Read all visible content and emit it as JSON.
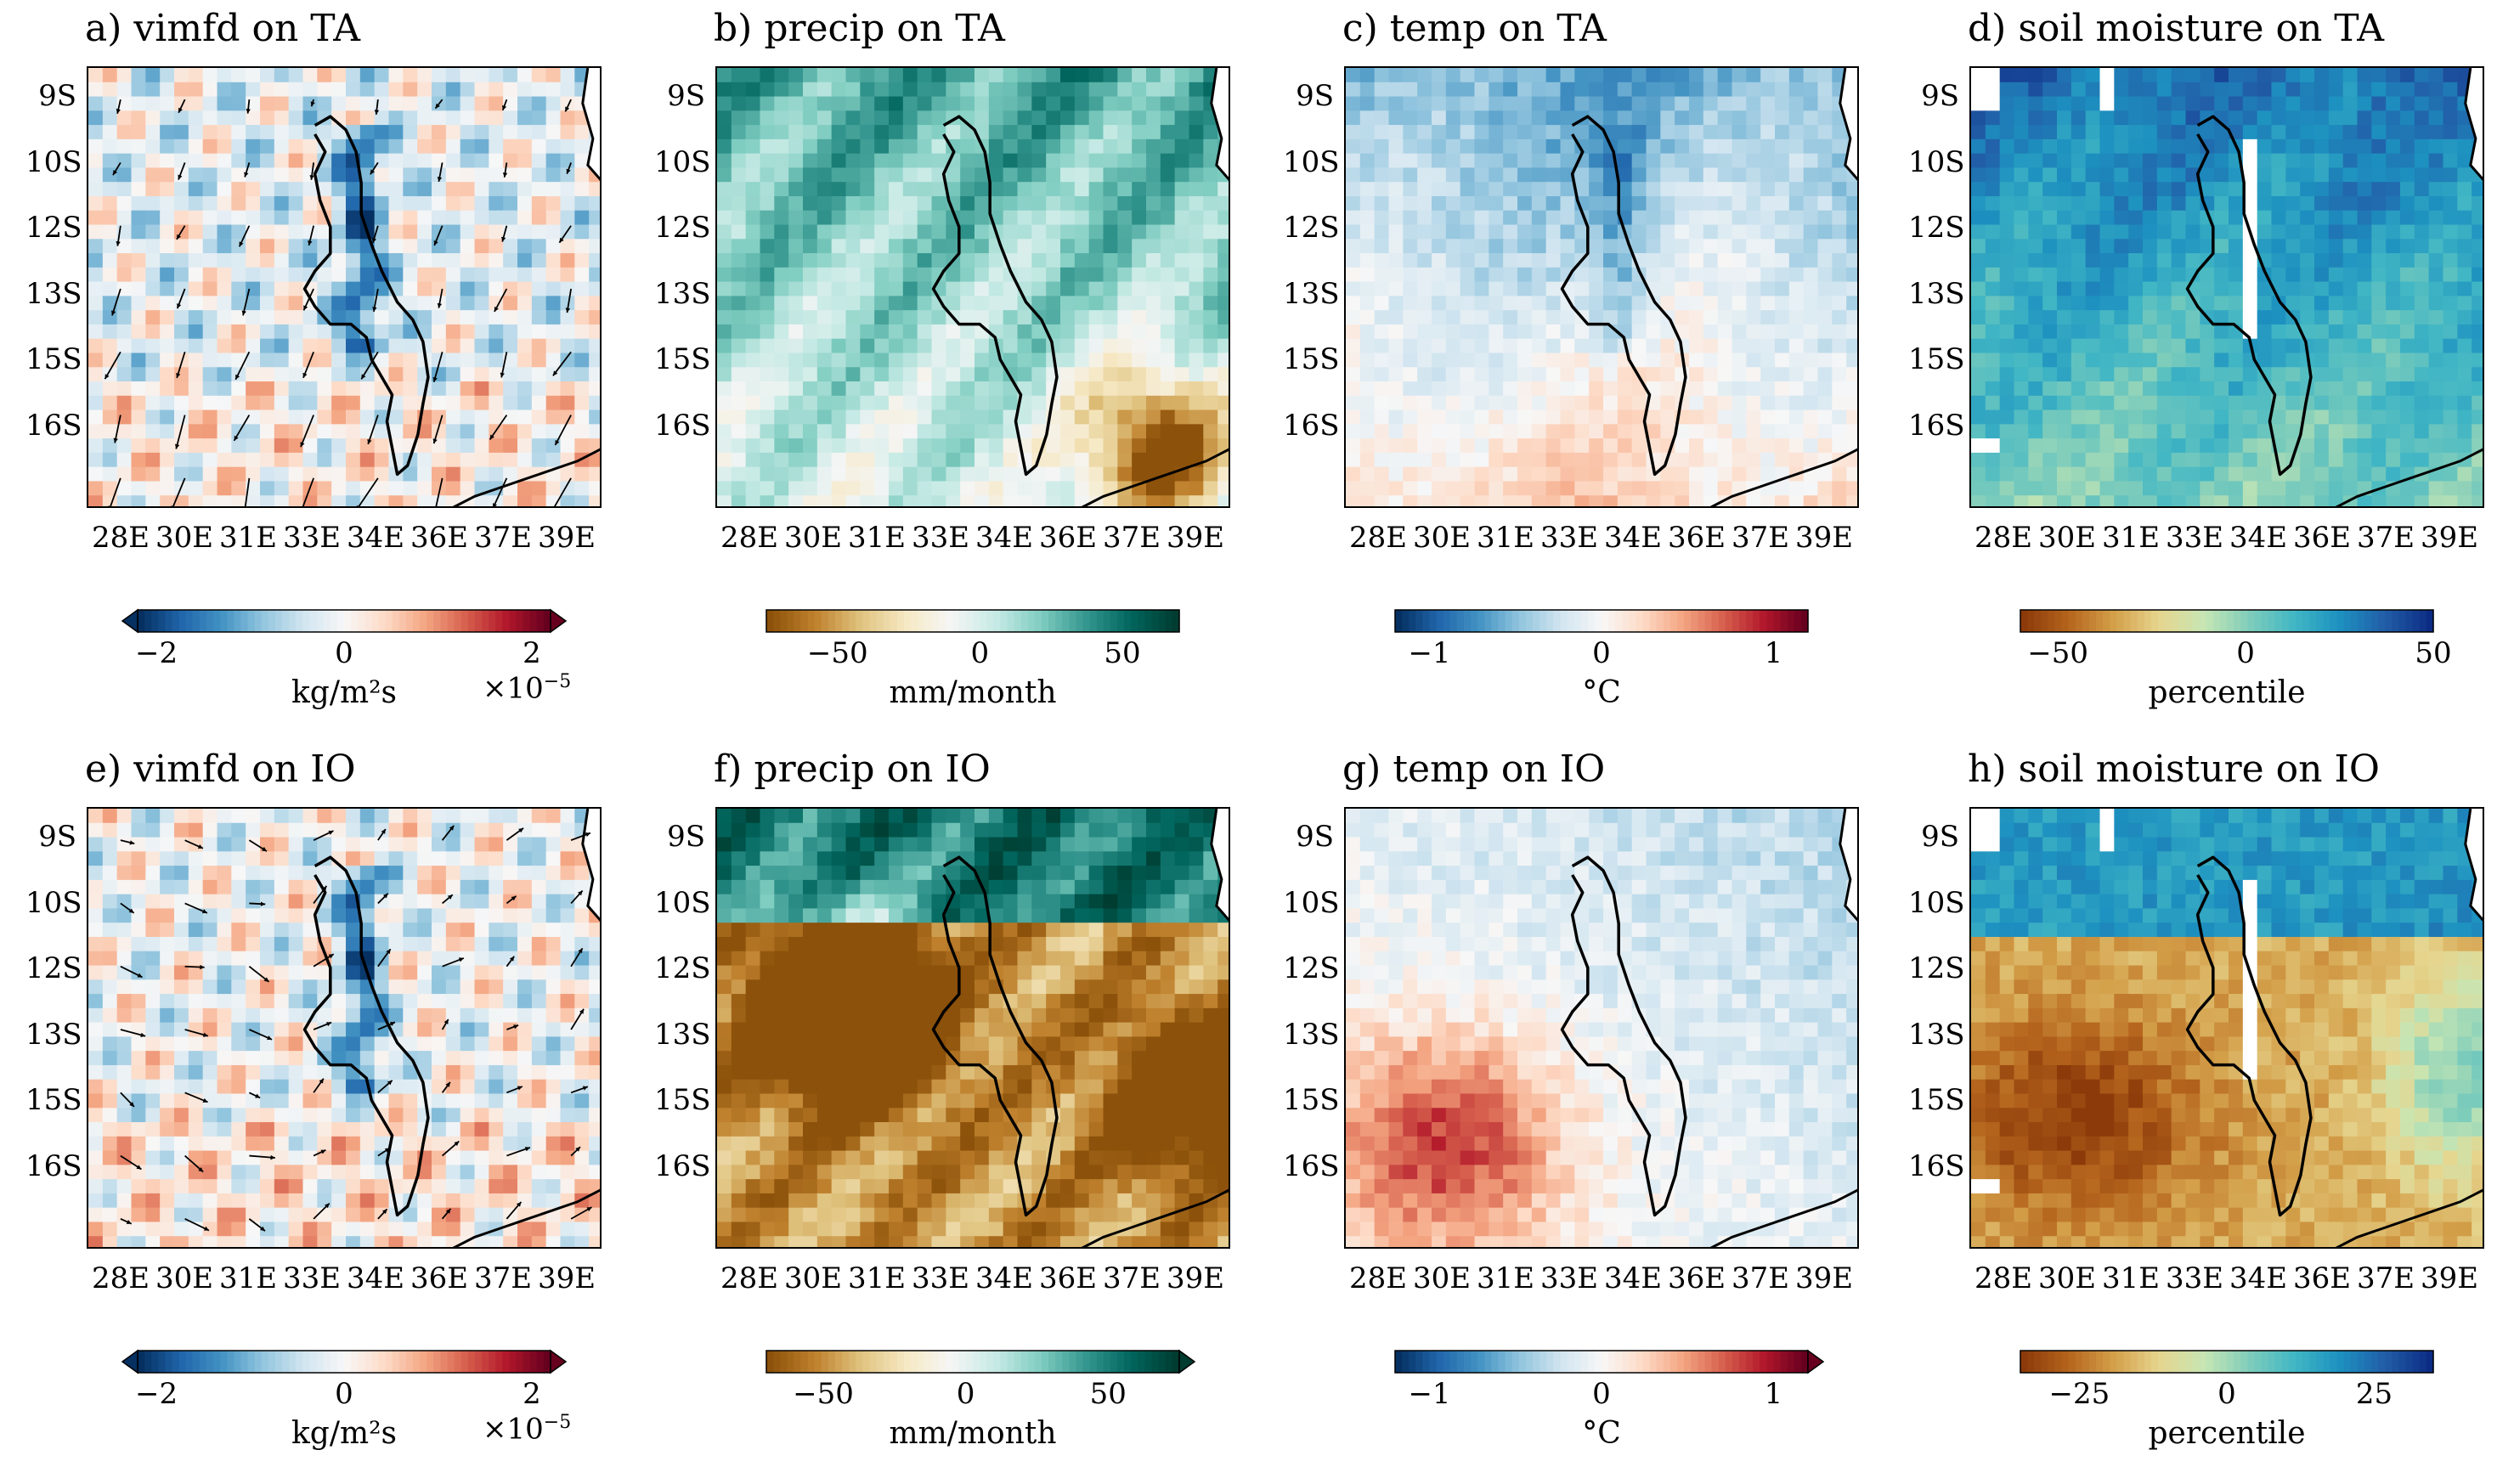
{
  "figure": {
    "panels": [
      {
        "id": "a",
        "title": "a) vimfd on TA",
        "variable": "vimfd",
        "scenario": "TA",
        "colormap": "RdBu_r",
        "arrows": true
      },
      {
        "id": "b",
        "title": "b) precip on TA",
        "variable": "precip",
        "scenario": "TA",
        "colormap": "BrBG",
        "arrows": false
      },
      {
        "id": "c",
        "title": "c) temp on TA",
        "variable": "temp",
        "scenario": "TA",
        "colormap": "RdBu_r",
        "arrows": false
      },
      {
        "id": "d",
        "title": "d) soil moisture on TA",
        "variable": "soil moisture",
        "scenario": "TA",
        "colormap": "YlGnBu_brown",
        "arrows": false
      },
      {
        "id": "e",
        "title": "e) vimfd on IO",
        "variable": "vimfd",
        "scenario": "IO",
        "colormap": "RdBu_r",
        "arrows": true
      },
      {
        "id": "f",
        "title": "f) precip on IO",
        "variable": "precip",
        "scenario": "IO",
        "colormap": "BrBG",
        "arrows": false
      },
      {
        "id": "g",
        "title": "g) temp on IO",
        "variable": "temp",
        "scenario": "IO",
        "colormap": "RdBu_r",
        "arrows": false
      },
      {
        "id": "h",
        "title": "h) soil moisture on IO",
        "variable": "soil moisture",
        "scenario": "IO",
        "colormap": "YlGnBu_brown",
        "arrows": false
      }
    ],
    "y_ticks": [
      "9S",
      "10S",
      "12S",
      "13S",
      "15S",
      "16S"
    ],
    "x_ticks": [
      "28E",
      "30E",
      "31E",
      "33E",
      "34E",
      "36E",
      "37E",
      "39E"
    ],
    "colorbars": [
      {
        "panel": "a",
        "ticks": [
          "−2",
          "0",
          "2"
        ],
        "label": "kg/m²s",
        "multiplier_base": "×10",
        "multiplier_exp": "−5",
        "extend": "both",
        "range": [
          -2.2,
          2.2
        ]
      },
      {
        "panel": "b",
        "ticks": [
          "−50",
          "0",
          "50"
        ],
        "label": "mm/month",
        "multiplier_base": "",
        "multiplier_exp": "",
        "extend": "none",
        "range": [
          -75,
          70
        ]
      },
      {
        "panel": "c",
        "ticks": [
          "−1",
          "0",
          "1"
        ],
        "label": "°C",
        "multiplier_base": "",
        "multiplier_exp": "",
        "extend": "none",
        "range": [
          -1.2,
          1.2
        ]
      },
      {
        "panel": "d",
        "ticks": [
          "−50",
          "0",
          "50"
        ],
        "label": "percentile",
        "multiplier_base": "",
        "multiplier_exp": "",
        "extend": "none",
        "range": [
          -60,
          50
        ]
      },
      {
        "panel": "e",
        "ticks": [
          "−2",
          "0",
          "2"
        ],
        "label": "kg/m²s",
        "multiplier_base": "×10",
        "multiplier_exp": "−5",
        "extend": "both",
        "range": [
          -2.2,
          2.2
        ]
      },
      {
        "panel": "f",
        "ticks": [
          "−50",
          "0",
          "50"
        ],
        "label": "mm/month",
        "multiplier_base": "",
        "multiplier_exp": "",
        "extend": "max",
        "range": [
          -70,
          75
        ]
      },
      {
        "panel": "g",
        "ticks": [
          "−1",
          "0",
          "1"
        ],
        "label": "°C",
        "multiplier_base": "",
        "multiplier_exp": "",
        "extend": "max",
        "range": [
          -1.2,
          1.2
        ]
      },
      {
        "panel": "h",
        "ticks": [
          "−25",
          "0",
          "25"
        ],
        "label": "percentile",
        "multiplier_base": "",
        "multiplier_exp": "",
        "extend": "none",
        "range": [
          -35,
          35
        ]
      }
    ],
    "colors": {
      "rdbu": [
        "#053061",
        "#2166ac",
        "#4393c3",
        "#92c5de",
        "#d1e5f0",
        "#f7f7f7",
        "#fddbc7",
        "#f4a582",
        "#d6604d",
        "#b2182b",
        "#67001f"
      ],
      "brbg": [
        "#8c510a",
        "#bf812d",
        "#dfc27d",
        "#f6e8c3",
        "#f5f5f5",
        "#c7eae5",
        "#80cdc1",
        "#35978f",
        "#01665e",
        "#003c30"
      ],
      "soil": [
        "#8c3a0a",
        "#b5651d",
        "#d4a04a",
        "#e6d58e",
        "#c7e6b4",
        "#7fcdbb",
        "#41b6c4",
        "#1d91c0",
        "#225ea8",
        "#0c2c84"
      ],
      "outline": "#000000"
    }
  },
  "chart_data": [
    {
      "type": "heatmap",
      "title": "a) vimfd on TA",
      "xlabel": "",
      "ylabel": "",
      "cbar_label": "kg/m²s",
      "cbar_scale": "×10⁻⁵",
      "clim": [
        -2,
        2
      ],
      "x_ticks": [
        "28E",
        "30E",
        "31E",
        "33E",
        "34E",
        "36E",
        "37E",
        "39E"
      ],
      "y_ticks": [
        "9S",
        "10S",
        "12S",
        "13S",
        "15S",
        "16S"
      ],
      "overlay": "moisture flux vectors, mostly pointing south-west"
    },
    {
      "type": "heatmap",
      "title": "b) precip on TA",
      "xlabel": "",
      "ylabel": "",
      "cbar_label": "mm/month",
      "clim": [
        -75,
        70
      ],
      "x_ticks": [
        "28E",
        "30E",
        "31E",
        "33E",
        "34E",
        "36E",
        "37E",
        "39E"
      ],
      "y_ticks": [
        "9S",
        "10S",
        "12S",
        "13S",
        "15S",
        "16S"
      ]
    },
    {
      "type": "heatmap",
      "title": "c) temp on TA",
      "xlabel": "",
      "ylabel": "",
      "cbar_label": "°C",
      "clim": [
        -1.2,
        1.2
      ],
      "x_ticks": [
        "28E",
        "30E",
        "31E",
        "33E",
        "34E",
        "36E",
        "37E",
        "39E"
      ],
      "y_ticks": [
        "9S",
        "10S",
        "12S",
        "13S",
        "15S",
        "16S"
      ]
    },
    {
      "type": "heatmap",
      "title": "d) soil moisture on TA",
      "xlabel": "",
      "ylabel": "",
      "cbar_label": "percentile",
      "clim": [
        -60,
        50
      ],
      "x_ticks": [
        "28E",
        "30E",
        "31E",
        "33E",
        "34E",
        "36E",
        "37E",
        "39E"
      ],
      "y_ticks": [
        "9S",
        "10S",
        "12S",
        "13S",
        "15S",
        "16S"
      ]
    },
    {
      "type": "heatmap",
      "title": "e) vimfd on IO",
      "xlabel": "",
      "ylabel": "",
      "cbar_label": "kg/m²s",
      "cbar_scale": "×10⁻⁵",
      "clim": [
        -2,
        2
      ],
      "x_ticks": [
        "28E",
        "30E",
        "31E",
        "33E",
        "34E",
        "36E",
        "37E",
        "39E"
      ],
      "y_ticks": [
        "9S",
        "10S",
        "12S",
        "13S",
        "15S",
        "16S"
      ],
      "overlay": "moisture flux vectors, mostly pointing north-east"
    },
    {
      "type": "heatmap",
      "title": "f) precip on IO",
      "xlabel": "",
      "ylabel": "",
      "cbar_label": "mm/month",
      "clim": [
        -70,
        75
      ],
      "x_ticks": [
        "28E",
        "30E",
        "31E",
        "33E",
        "34E",
        "36E",
        "37E",
        "39E"
      ],
      "y_ticks": [
        "9S",
        "10S",
        "12S",
        "13S",
        "15S",
        "16S"
      ]
    },
    {
      "type": "heatmap",
      "title": "g) temp on IO",
      "xlabel": "",
      "ylabel": "",
      "cbar_label": "°C",
      "clim": [
        -1.2,
        1.2
      ],
      "x_ticks": [
        "28E",
        "30E",
        "31E",
        "33E",
        "34E",
        "36E",
        "37E",
        "39E"
      ],
      "y_ticks": [
        "9S",
        "10S",
        "12S",
        "13S",
        "15S",
        "16S"
      ]
    },
    {
      "type": "heatmap",
      "title": "h) soil moisture on IO",
      "xlabel": "",
      "ylabel": "",
      "cbar_label": "percentile",
      "clim": [
        -35,
        35
      ],
      "x_ticks": [
        "28E",
        "30E",
        "31E",
        "33E",
        "34E",
        "36E",
        "37E",
        "39E"
      ],
      "y_ticks": [
        "9S",
        "10S",
        "12S",
        "13S",
        "15S",
        "16S"
      ]
    }
  ]
}
